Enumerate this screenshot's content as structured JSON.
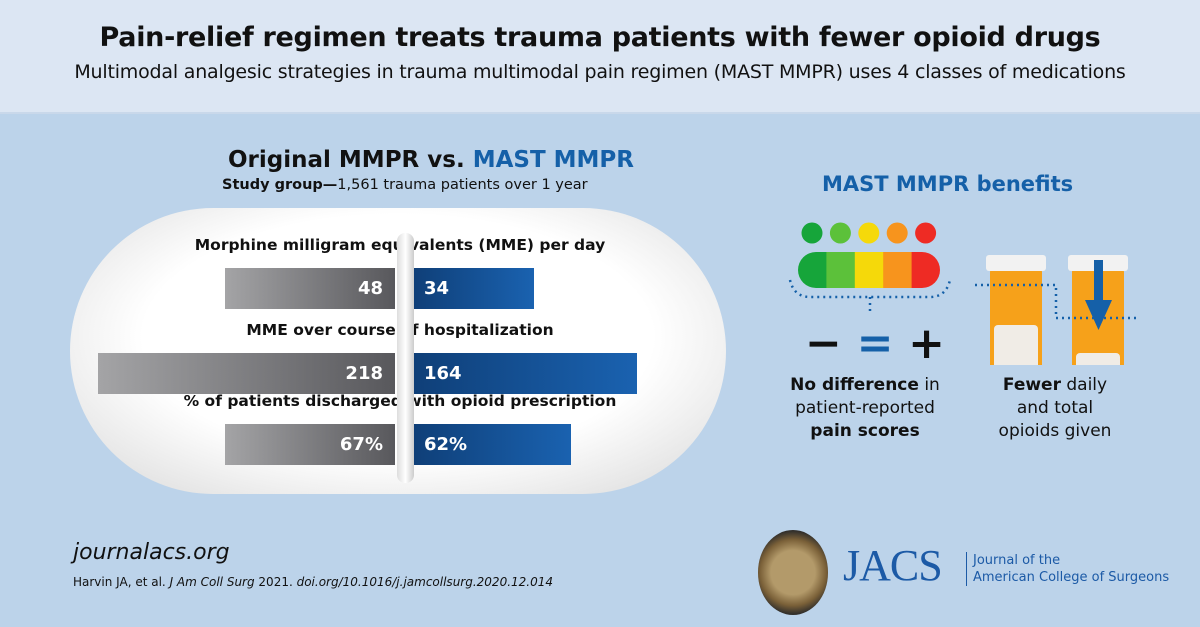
{
  "header": {
    "title": "Pain-relief regimen treats trauma patients with fewer opioid drugs",
    "subtitle": "Multimodal analgesic strategies in trauma multimodal pain regimen (MAST MMPR) uses 4 classes of medications"
  },
  "chart_data": {
    "type": "bar",
    "title_part1": "Original MMPR vs.",
    "title_part2": "MAST MMPR",
    "subtitle_bold": "Study group—",
    "subtitle_rest": "1,561 trauma patients over 1 year",
    "categories": [
      "Morphine milligram equivalents (MME) per day",
      "MME over course of hospitalization",
      "% of patients discharged with opioid prescription"
    ],
    "series": [
      {
        "name": "Original MMPR",
        "color": "#6d6d70",
        "values": [
          48,
          218,
          67
        ],
        "labels": [
          "48",
          "218",
          "67%"
        ]
      },
      {
        "name": "MAST MMPR",
        "color": "#1560a8",
        "values": [
          34,
          164,
          62
        ],
        "labels": [
          "34",
          "164",
          "62%"
        ]
      }
    ]
  },
  "benefits": {
    "title": "MAST MMPR benefits",
    "pain": {
      "bold1": "No difference",
      "text1": " in",
      "text2": "patient-reported",
      "bold3": "pain scores",
      "symbols": [
        "−",
        "=",
        "+"
      ]
    },
    "opioids": {
      "bold1": "Fewer",
      "text1": " daily",
      "text2": "and total",
      "text3": "opioids given"
    },
    "scale_colors": [
      "#16a53a",
      "#5cc13a",
      "#f5d90a",
      "#f7941d",
      "#ee2b24"
    ]
  },
  "footer": {
    "url": "journalacs.org",
    "citation_plain": "Harvin JA, et al. ",
    "citation_journal": "J Am Coll Surg",
    "citation_year": " 2021. ",
    "citation_doi": "doi.org/10.1016/j.jamcollsurg.2020.12.014",
    "logo": "JACS",
    "logo_sub1": "Journal of the",
    "logo_sub2": "American College of Surgeons"
  }
}
